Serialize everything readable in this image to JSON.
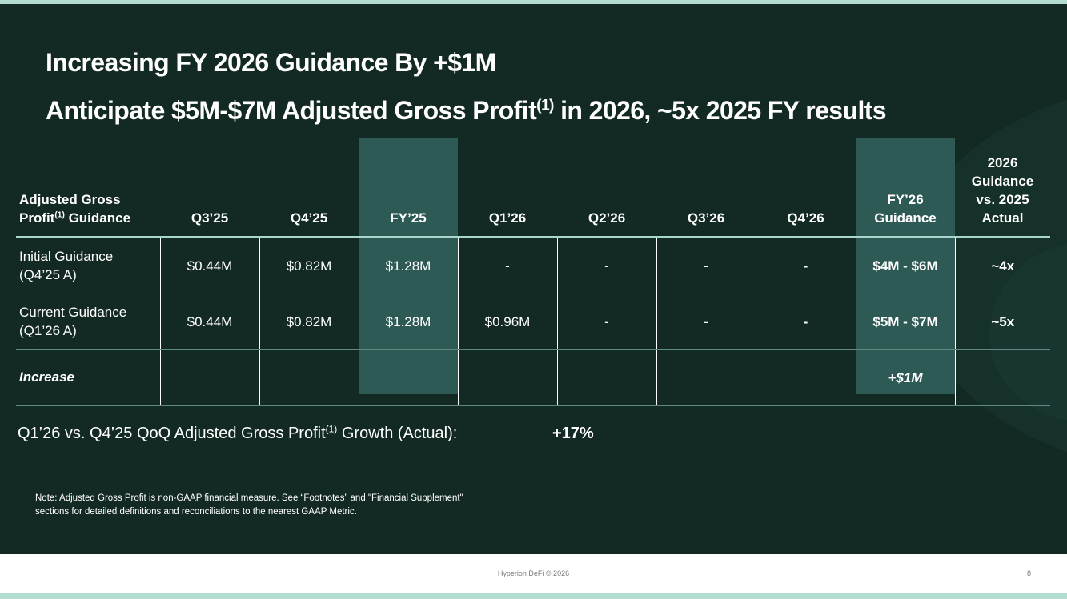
{
  "title": {
    "line1": "Increasing FY 2026 Guidance By +$1M",
    "line2_pre": "Anticipate $5M-$7M Adjusted Gross Profit",
    "line2_sup": "(1)",
    "line2_post": " in 2026, ~5x 2025 FY results"
  },
  "table": {
    "header": {
      "row_label_line1": "Adjusted Gross",
      "row_label_line2": "Profit",
      "row_label_sup": "(1)",
      "row_label_line2_post": " Guidance",
      "q3_25": "Q3’25",
      "q4_25": "Q4’25",
      "fy25": "FY’25",
      "q1_26": "Q1’26",
      "q2_26": "Q2’26",
      "q3_26": "Q3’26",
      "q4_26": "Q4’26",
      "fy26_line1": "FY’26",
      "fy26_line2": "Guidance",
      "vs_line1": "2026",
      "vs_line2": "Guidance",
      "vs_line3": "vs. 2025",
      "vs_line4": "Actual"
    },
    "rows": [
      {
        "label_line1": "Initial Guidance",
        "label_line2": "(Q4’25 A)",
        "q3_25": "$0.44M",
        "q4_25": "$0.82M",
        "fy25": "$1.28M",
        "q1_26": "-",
        "q2_26": "-",
        "q3_26": "-",
        "q4_26": "-",
        "fy26": "$4M - $6M",
        "vs": "~4x"
      },
      {
        "label_line1": "Current Guidance",
        "label_line2": "(Q1’26 A)",
        "q3_25": "$0.44M",
        "q4_25": "$0.82M",
        "fy25": "$1.28M",
        "q1_26": "$0.96M",
        "q2_26": "-",
        "q3_26": "-",
        "q4_26": "-",
        "fy26": "$5M - $7M",
        "vs": "~5x"
      },
      {
        "label_line1": "Increase",
        "fy26": "+$1M"
      }
    ]
  },
  "growth": {
    "label_pre": "Q1’26 vs. Q4’25 QoQ Adjusted Gross Profit",
    "label_sup": "(1)",
    "label_post": " Growth (Actual):",
    "value": "+17%"
  },
  "note": {
    "line1": "Note: Adjusted Gross Profit is non-GAAP financial measure. See “Footnotes” and \"Financial Supplement\"",
    "line2": "sections for detailed definitions and reconciliations to the nearest GAAP Metric."
  },
  "footer": {
    "text": "Hyperion DeFi © 2026",
    "page_number": "8"
  },
  "colors": {
    "background": "#132a24",
    "highlight_column": "#2e5a56",
    "header_rule": "#a9d6cc",
    "frame": "#b3ddd3"
  }
}
